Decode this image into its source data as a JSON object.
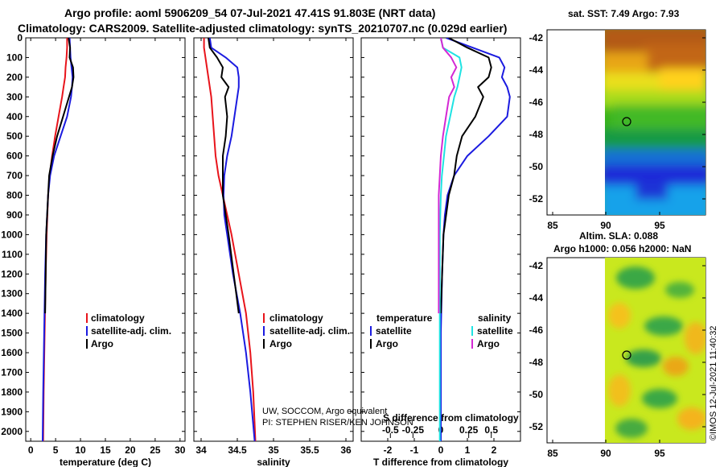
{
  "header": {
    "line1": "Argo profile: aoml 5906209_54 07-Jul-2021 47.41S 91.803E (NRT data)",
    "line2": "Climatology: CARS2009. Satellite-adjusted climatology: synTS_20210707.nc (0.029d earlier)"
  },
  "colors": {
    "climatology": "#e8141b",
    "satellite": "#1b1be0",
    "argo": "#000000",
    "argo_salinity_diff": "#d428d4",
    "satellite_salinity_diff": "#1ee3e3"
  },
  "legend": {
    "climatology": "climatology",
    "satellite": "satellite-adj. clim.",
    "argo": "Argo",
    "temperature_head": "temperature",
    "salinity_head": "salinity",
    "diff_satellite": "satellite",
    "diff_argo": "Argo",
    "diff_sal_satellite": "satellite",
    "diff_sal_argo": "Argo"
  },
  "annotations": {
    "credit1": "UW, SOCCOM, Argo equivalent",
    "credit2": "PI: STEPHEN RISER/KEN JOHNSON",
    "s_diff_title": "S difference from climatology",
    "watermark": "©IMOS 12-Jul-2021 11:40:32"
  },
  "maps": {
    "sst_title": "sat. SST: 7.49 Argo: 7.93",
    "sla_title1": "Altim. SLA: 0.088",
    "sla_title2": "Argo h1000: 0.056 h2000: NaN",
    "lat_ticks": [
      "-42",
      "-44",
      "-46",
      "-48",
      "-50",
      "-52"
    ],
    "lon_ticks": [
      "85",
      "90",
      "95"
    ],
    "float_marker": "Argo float position"
  },
  "chart_data": [
    {
      "type": "line",
      "title": "",
      "xlabel": "temperature (deg C)",
      "ylabel": "",
      "xlim": [
        -1,
        31
      ],
      "ylim": [
        2050,
        0
      ],
      "xticks": [
        0,
        5,
        10,
        15,
        20,
        25,
        30
      ],
      "yticks": [
        0,
        100,
        200,
        300,
        400,
        500,
        600,
        700,
        800,
        900,
        1000,
        1100,
        1200,
        1300,
        1400,
        1500,
        1600,
        1700,
        1800,
        1900,
        2000
      ],
      "legend_position": "bottom-right",
      "series": [
        {
          "name": "climatology",
          "depth": [
            0,
            50,
            100,
            150,
            200,
            250,
            300,
            400,
            500,
            600,
            700,
            800,
            1000,
            1200,
            1500,
            1800,
            2050
          ],
          "values": [
            7.3,
            7.3,
            7.2,
            7.0,
            6.9,
            6.6,
            6.3,
            5.6,
            4.9,
            4.3,
            3.8,
            3.5,
            3.2,
            3.0,
            2.8,
            2.6,
            2.5
          ]
        },
        {
          "name": "satellite-adj. clim.",
          "depth": [
            0,
            50,
            100,
            150,
            200,
            250,
            300,
            400,
            500,
            600,
            700,
            800,
            1000,
            1200,
            1500,
            1800,
            2050
          ],
          "values": [
            7.8,
            7.9,
            8.0,
            8.2,
            8.4,
            8.3,
            8.1,
            7.3,
            6.0,
            4.7,
            3.9,
            3.5,
            3.1,
            2.9,
            2.7,
            2.5,
            2.4
          ]
        },
        {
          "name": "Argo",
          "depth": [
            0,
            50,
            100,
            150,
            200,
            250,
            300,
            400,
            500,
            600,
            700,
            800,
            1000,
            1200,
            1400
          ],
          "values": [
            7.6,
            7.9,
            7.8,
            8.5,
            8.6,
            8.3,
            7.7,
            6.5,
            5.3,
            4.4,
            3.7,
            3.5,
            3.1,
            3.0,
            2.9
          ]
        }
      ]
    },
    {
      "type": "line",
      "title": "",
      "xlabel": "salinity",
      "ylabel": "",
      "xlim": [
        33.9,
        36.1
      ],
      "ylim": [
        2050,
        0
      ],
      "xticks": [
        34,
        34.5,
        35,
        35.5,
        36
      ],
      "yticks": [
        0,
        100,
        200,
        300,
        400,
        500,
        600,
        700,
        800,
        900,
        1000,
        1100,
        1200,
        1300,
        1400,
        1500,
        1600,
        1700,
        1800,
        1900,
        2000
      ],
      "legend_position": "bottom-right",
      "series": [
        {
          "name": "climatology",
          "depth": [
            0,
            50,
            100,
            150,
            200,
            300,
            400,
            500,
            600,
            700,
            800,
            900,
            1000,
            1200,
            1400,
            1600,
            1800,
            2050
          ],
          "values": [
            34.04,
            34.04,
            34.06,
            34.08,
            34.1,
            34.14,
            34.16,
            34.18,
            34.2,
            34.24,
            34.3,
            34.36,
            34.42,
            34.52,
            34.62,
            34.68,
            34.72,
            34.75
          ]
        },
        {
          "name": "satellite-adj. clim.",
          "depth": [
            0,
            50,
            100,
            150,
            200,
            250,
            300,
            400,
            500,
            600,
            700,
            800,
            900,
            1000,
            1200,
            1400,
            1600,
            1800,
            2050
          ],
          "values": [
            34.12,
            34.14,
            34.34,
            34.5,
            34.52,
            34.52,
            34.5,
            34.46,
            34.42,
            34.36,
            34.32,
            34.31,
            34.32,
            34.36,
            34.44,
            34.54,
            34.62,
            34.68,
            34.74
          ]
        },
        {
          "name": "Argo",
          "depth": [
            0,
            50,
            100,
            150,
            200,
            250,
            300,
            400,
            500,
            600,
            700,
            800,
            900,
            1000,
            1200,
            1400
          ],
          "values": [
            34.1,
            34.12,
            34.22,
            34.3,
            34.28,
            34.38,
            34.33,
            34.36,
            34.34,
            34.3,
            34.3,
            34.3,
            34.34,
            34.38,
            34.45,
            34.52
          ]
        }
      ]
    },
    {
      "type": "line",
      "title": "",
      "xlabel": "T difference from climatology",
      "ylabel": "",
      "xlim": [
        -3,
        3
      ],
      "ylim": [
        2050,
        0
      ],
      "xticks": [
        -2,
        -1,
        0,
        1,
        2
      ],
      "s_axis": {
        "label": "S difference from climatology",
        "ticks": [
          "-0.5",
          "-0.25",
          "0",
          "0.25",
          "0.5"
        ],
        "tick_temp_positions": [
          -1.9,
          -1.05,
          0,
          1.05,
          1.9
        ]
      },
      "yticks": [
        0,
        100,
        200,
        300,
        400,
        500,
        600,
        700,
        800,
        900,
        1000,
        1100,
        1200,
        1300,
        1400,
        1500,
        1600,
        1700,
        1800,
        1900,
        2000
      ],
      "legend_position": "bottom",
      "series": [
        {
          "name": "temperature satellite",
          "depth": [
            0,
            50,
            100,
            150,
            200,
            250,
            300,
            400,
            500,
            600,
            700,
            800,
            900,
            1000,
            1200,
            1500,
            2050
          ],
          "values": [
            0.2,
            1.2,
            2.2,
            2.4,
            2.3,
            2.5,
            2.6,
            2.5,
            1.8,
            1.0,
            0.5,
            0.25,
            0.15,
            0.1,
            0.05,
            0.0,
            0.0
          ]
        },
        {
          "name": "temperature Argo",
          "depth": [
            0,
            50,
            100,
            150,
            200,
            250,
            300,
            400,
            500,
            600,
            700,
            800,
            900,
            1000,
            1200,
            1400
          ],
          "values": [
            0.3,
            1.0,
            1.8,
            1.9,
            1.8,
            1.4,
            1.6,
            1.3,
            0.8,
            0.6,
            0.5,
            0.3,
            0.2,
            0.1,
            0.05,
            0.0
          ]
        },
        {
          "name": "salinity satellite",
          "depth": [
            0,
            50,
            100,
            150,
            200,
            250,
            300,
            400,
            500,
            600,
            700,
            800,
            1000,
            1200,
            1500,
            1800,
            2050
          ],
          "values": [
            0.0,
            0.02,
            0.18,
            0.2,
            0.18,
            0.16,
            0.13,
            0.09,
            0.05,
            0.03,
            0.01,
            0.0,
            -0.01,
            -0.01,
            -0.01,
            -0.01,
            -0.01
          ]
        },
        {
          "name": "salinity Argo",
          "depth": [
            0,
            50,
            100,
            150,
            200,
            250,
            300,
            400,
            500,
            600,
            700,
            800,
            1000,
            1200,
            1400
          ],
          "values": [
            0.0,
            0.02,
            0.1,
            0.15,
            0.1,
            0.13,
            0.08,
            0.05,
            0.02,
            0.0,
            -0.01,
            -0.02,
            -0.02,
            -0.02,
            -0.02
          ]
        }
      ]
    }
  ]
}
